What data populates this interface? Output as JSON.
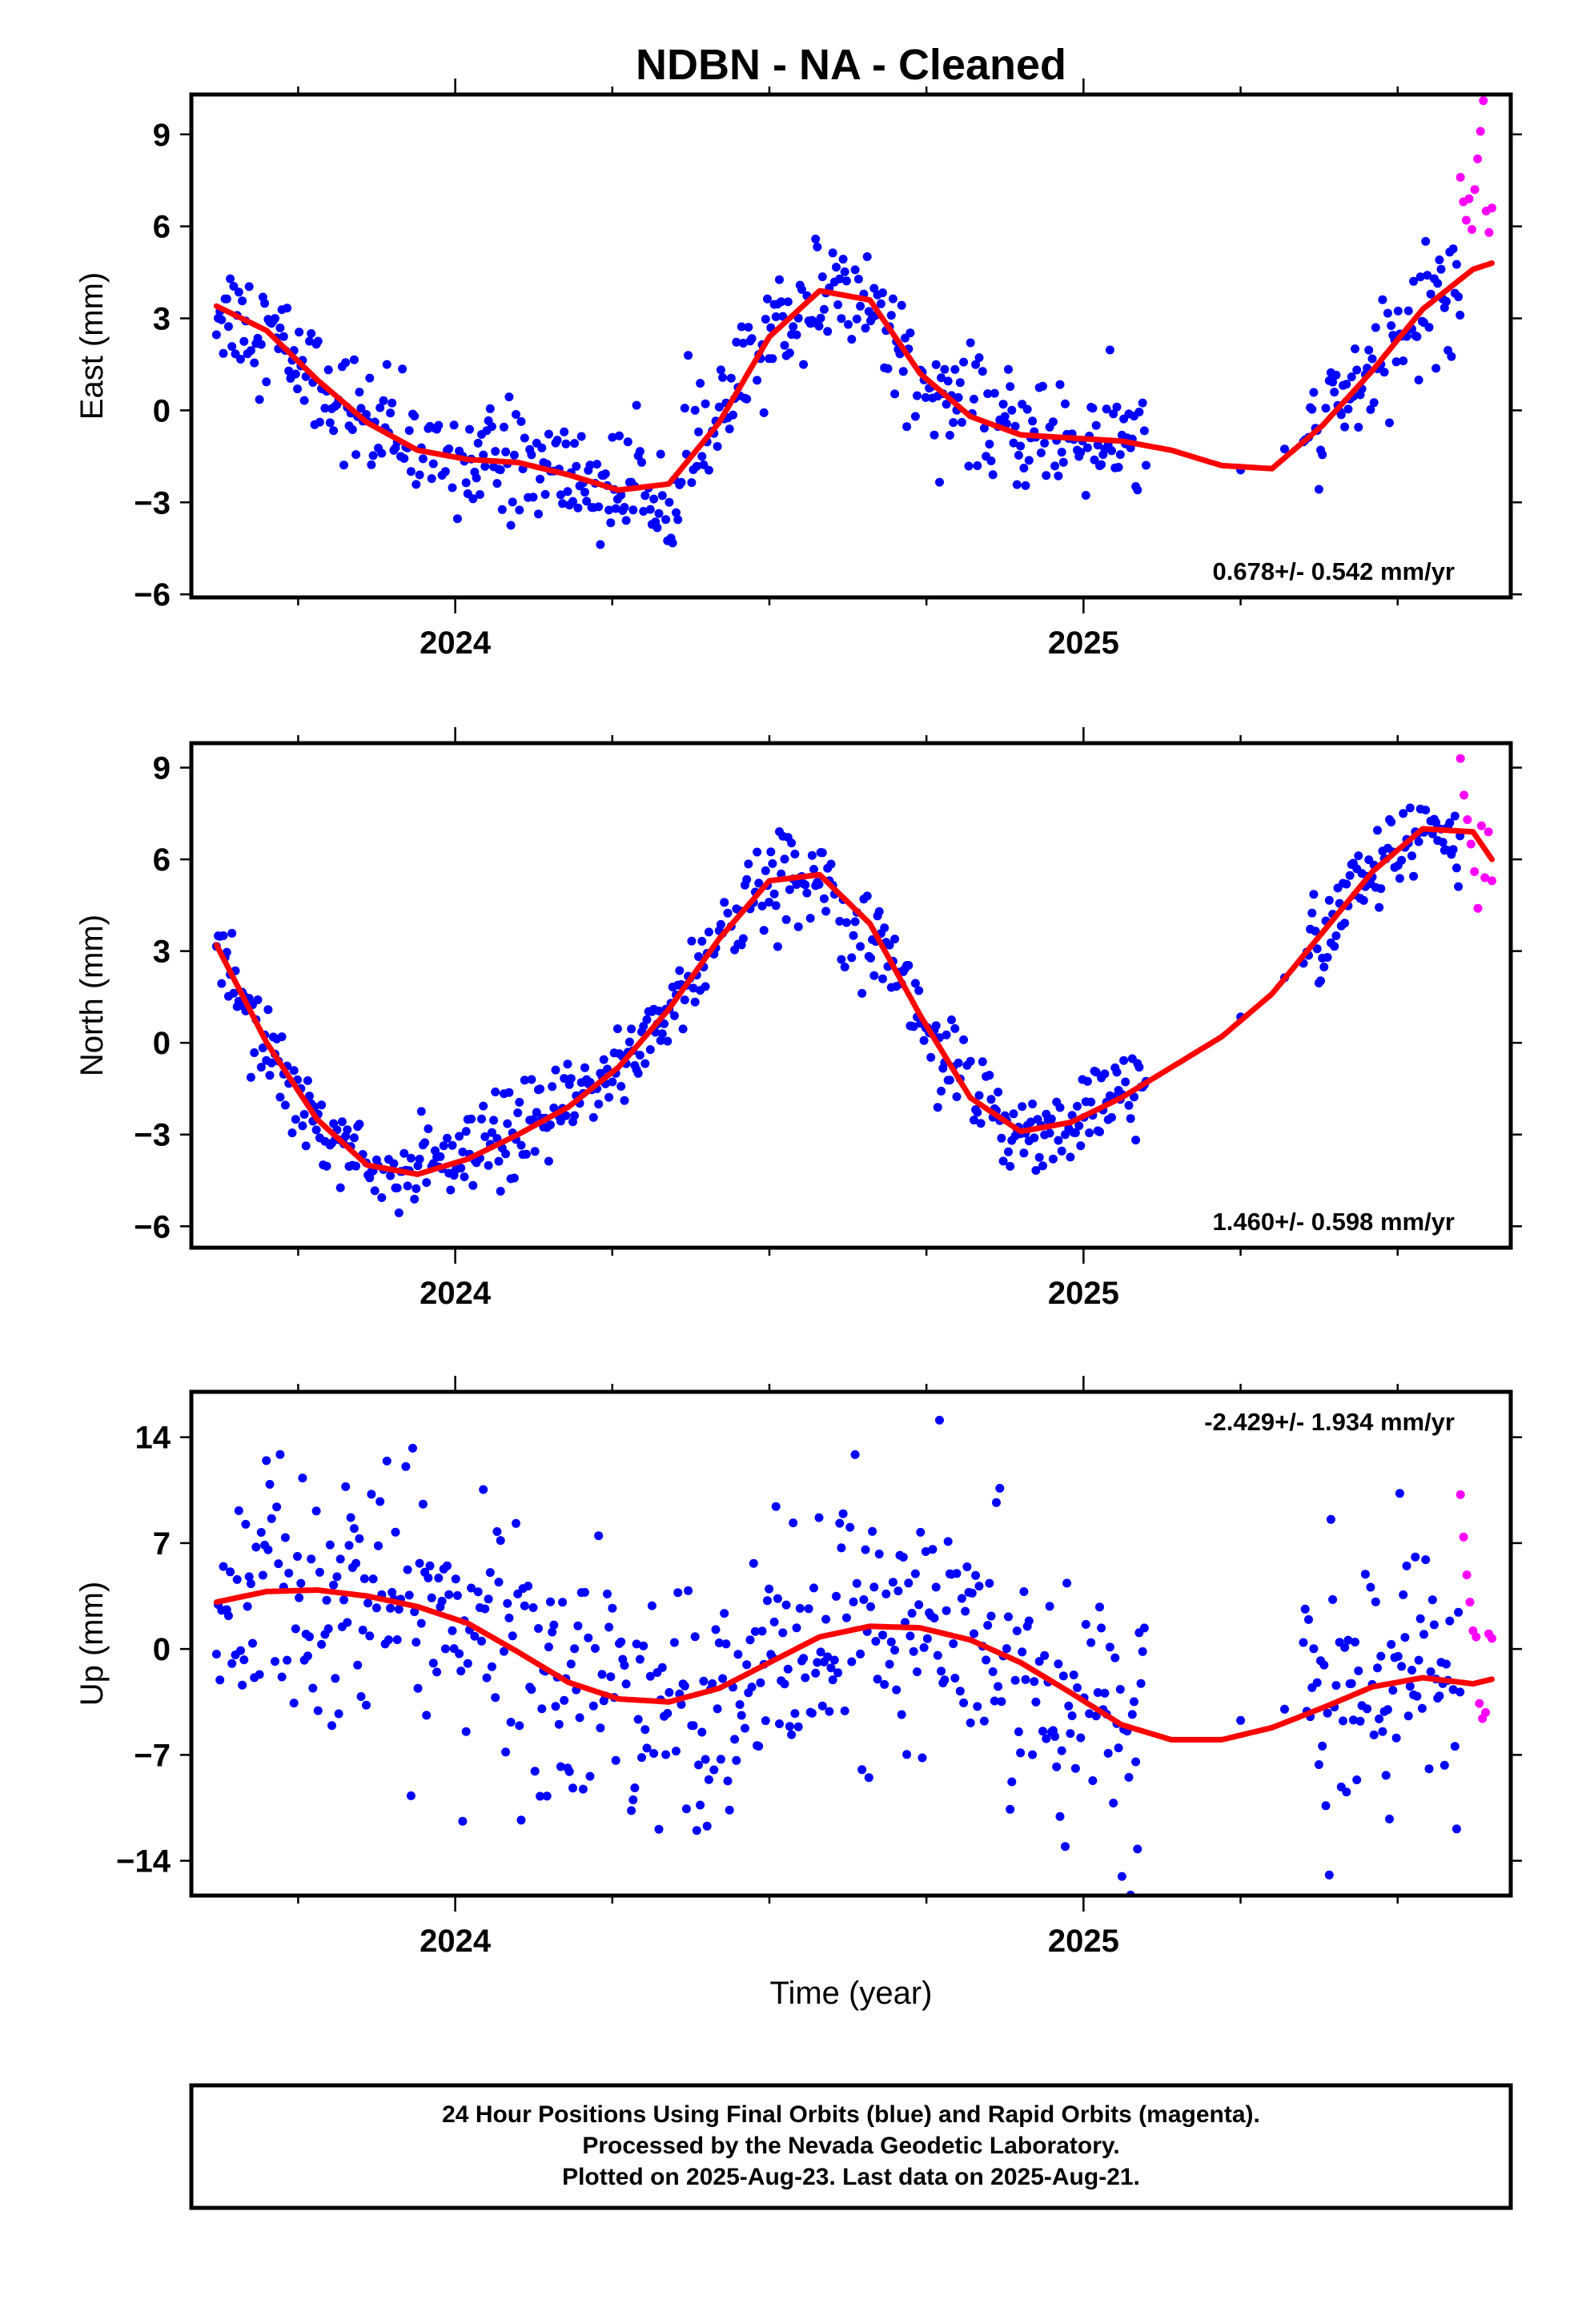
{
  "title": "NDBN  - NA - Cleaned",
  "x_axis_title": "Time (year)",
  "footer": {
    "line1": "24 Hour Positions Using Final Orbits (blue) and Rapid Orbits (magenta).",
    "line2": "Processed by the Nevada Geodetic Laboratory.",
    "line3": "Plotted on 2025-Aug-23. Last data on 2025-Aug-21."
  },
  "colors": {
    "final_orbits": "#0000ff",
    "rapid_orbits": "#ff00ff",
    "fit": "#ff0000",
    "frame": "#000000"
  },
  "chart_data": [
    {
      "type": "scatter",
      "component": "East",
      "ylabel": "East (mm)",
      "xlim": [
        2023.58,
        2025.68
      ],
      "ylim": [
        -6.1,
        10.3
      ],
      "x_ticks": [
        2024,
        2025
      ],
      "y_ticks": [
        9,
        6,
        3,
        0,
        -3,
        -6
      ],
      "y_tick_labels": [
        "9",
        "6",
        "3",
        "0",
        "−3",
        "−6"
      ],
      "rate": "0.678+/- 0.542 mm/yr",
      "rate_position": "bottom-right",
      "grid": false,
      "series": [
        {
          "name": "Final Orbits (blue)",
          "color": "#0000ff",
          "x_range": [
            2023.62,
            2025.1
          ],
          "gap": [
            2025.1,
            2025.35
          ],
          "x_range2": [
            2025.35,
            2025.6
          ],
          "spread": 0.9
        },
        {
          "name": "Rapid Orbits (magenta)",
          "color": "#ff00ff",
          "x_range": [
            2025.6,
            2025.65
          ],
          "y": [
            7.6,
            6.8,
            6.2,
            6.9,
            5.9,
            7.2,
            8.2,
            9.1,
            10.1,
            6.5,
            5.8,
            6.6
          ]
        },
        {
          "name": "Fit",
          "color": "#ff0000",
          "x": [
            2023.62,
            2023.7,
            2023.78,
            2023.86,
            2023.94,
            2024.02,
            2024.1,
            2024.18,
            2024.26,
            2024.34,
            2024.42,
            2024.5,
            2024.58,
            2024.66,
            2024.74,
            2024.82,
            2024.9,
            2024.98,
            2025.06,
            2025.14,
            2025.22,
            2025.3,
            2025.38,
            2025.46,
            2025.54,
            2025.62,
            2025.65
          ],
          "y": [
            3.4,
            2.6,
            1.0,
            -0.4,
            -1.3,
            -1.6,
            -1.7,
            -2.1,
            -2.6,
            -2.4,
            -0.4,
            2.4,
            3.9,
            3.6,
            1.2,
            -0.2,
            -0.8,
            -0.9,
            -1.0,
            -1.3,
            -1.8,
            -1.9,
            -0.5,
            1.3,
            3.3,
            4.6,
            4.8
          ]
        }
      ]
    },
    {
      "type": "scatter",
      "component": "North",
      "ylabel": "North (mm)",
      "xlim": [
        2023.58,
        2025.68
      ],
      "ylim": [
        -6.7,
        9.8
      ],
      "x_ticks": [
        2024,
        2025
      ],
      "y_ticks": [
        9,
        6,
        3,
        0,
        -3,
        -6
      ],
      "y_tick_labels": [
        "9",
        "6",
        "3",
        "0",
        "−3",
        "−6"
      ],
      "rate": "1.460+/- 0.598 mm/yr",
      "rate_position": "bottom-right",
      "grid": false,
      "series": [
        {
          "name": "Final Orbits (blue)",
          "color": "#0000ff",
          "x_range": [
            2023.62,
            2025.1
          ],
          "gap": [
            2025.1,
            2025.35
          ],
          "x_range2": [
            2025.35,
            2025.6
          ],
          "spread": 0.75
        },
        {
          "name": "Rapid Orbits (magenta)",
          "color": "#ff00ff",
          "x_range": [
            2025.6,
            2025.65
          ],
          "y": [
            9.3,
            8.1,
            7.3,
            6.5,
            5.6,
            4.4,
            7.1,
            5.4,
            6.9,
            5.3
          ]
        },
        {
          "name": "Fit",
          "color": "#ff0000",
          "x": [
            2023.62,
            2023.7,
            2023.78,
            2023.86,
            2023.94,
            2024.02,
            2024.1,
            2024.18,
            2024.26,
            2024.34,
            2024.42,
            2024.5,
            2024.58,
            2024.66,
            2024.74,
            2024.82,
            2024.9,
            2024.98,
            2025.06,
            2025.14,
            2025.22,
            2025.3,
            2025.38,
            2025.46,
            2025.54,
            2025.62,
            2025.65
          ],
          "y": [
            3.2,
            0.0,
            -2.5,
            -4.0,
            -4.3,
            -3.8,
            -3.0,
            -2.1,
            -0.8,
            1.1,
            3.4,
            5.3,
            5.5,
            3.9,
            0.9,
            -1.8,
            -2.9,
            -2.6,
            -1.8,
            -0.8,
            0.2,
            1.6,
            3.6,
            5.6,
            7.0,
            6.9,
            6.0
          ]
        }
      ]
    },
    {
      "type": "scatter",
      "component": "Up",
      "ylabel": "Up (mm)",
      "xlim": [
        2023.58,
        2025.68
      ],
      "ylim": [
        -16.3,
        17.0
      ],
      "x_ticks": [
        2024,
        2025
      ],
      "y_ticks": [
        14,
        7,
        0,
        -7,
        -14
      ],
      "y_tick_labels": [
        "14",
        "7",
        "0",
        "−7",
        "−14"
      ],
      "rate": "-2.429+/- 1.934 mm/yr",
      "rate_position": "top-right",
      "grid": false,
      "series": [
        {
          "name": "Final Orbits (blue)",
          "color": "#0000ff",
          "x_range": [
            2023.62,
            2025.1
          ],
          "gap": [
            2025.1,
            2025.35
          ],
          "x_range2": [
            2025.35,
            2025.6
          ],
          "spread": 4.2
        },
        {
          "name": "Rapid Orbits (magenta)",
          "color": "#ff00ff",
          "x_range": [
            2025.6,
            2025.65
          ],
          "y": [
            10.2,
            7.4,
            4.9,
            3.1,
            1.2,
            0.8,
            -3.6,
            -4.6,
            -4.2,
            1.0,
            0.7
          ]
        },
        {
          "name": "Fit",
          "color": "#ff0000",
          "x": [
            2023.62,
            2023.7,
            2023.78,
            2023.86,
            2023.94,
            2024.02,
            2024.1,
            2024.18,
            2024.26,
            2024.34,
            2024.42,
            2024.5,
            2024.58,
            2024.66,
            2024.74,
            2024.82,
            2024.9,
            2024.98,
            2025.06,
            2025.14,
            2025.22,
            2025.3,
            2025.38,
            2025.46,
            2025.54,
            2025.62,
            2025.65
          ],
          "y": [
            3.1,
            3.8,
            3.9,
            3.5,
            2.8,
            1.7,
            -0.2,
            -2.2,
            -3.3,
            -3.5,
            -2.6,
            -0.9,
            0.8,
            1.5,
            1.4,
            0.6,
            -0.9,
            -2.9,
            -5.0,
            -6.0,
            -6.0,
            -5.2,
            -3.9,
            -2.5,
            -1.9,
            -2.3,
            -2.0
          ]
        }
      ]
    }
  ]
}
